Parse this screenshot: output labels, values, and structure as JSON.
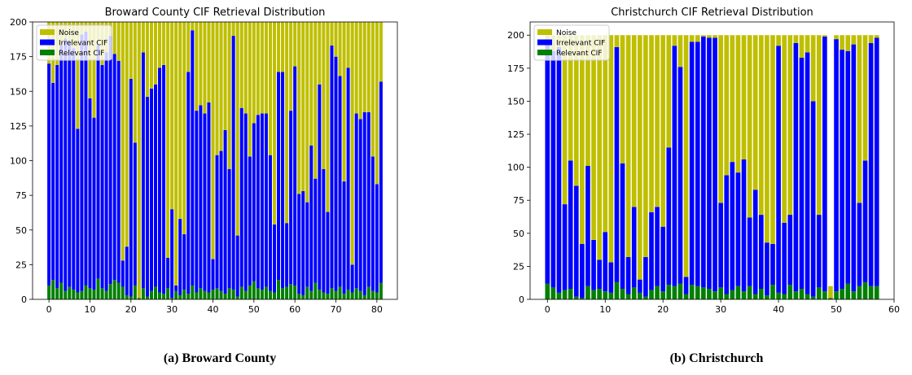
{
  "figure": {
    "captions": [
      "(a) Broward County",
      "(b) Christchurch"
    ]
  },
  "chart_data": [
    {
      "type": "bar",
      "stacked": true,
      "title": "Broward County CIF Retrieval Distribution",
      "xlabel": "",
      "ylabel": "",
      "xlim": [
        -4,
        85
      ],
      "ylim": [
        0,
        200
      ],
      "xticks": [
        0,
        10,
        20,
        30,
        40,
        50,
        60,
        70,
        80
      ],
      "yticks": [
        0,
        25,
        50,
        75,
        100,
        125,
        150,
        175,
        200
      ],
      "legend": {
        "position": "top-left",
        "entries": [
          "Noise",
          "Irrelevant CIF",
          "Relevant CIF"
        ]
      },
      "colors": {
        "Noise": "#bfbf00",
        "Irrelevant CIF": "#0000ff",
        "Relevant CIF": "#008000"
      },
      "x": [
        0,
        1,
        2,
        3,
        4,
        5,
        6,
        7,
        8,
        9,
        10,
        11,
        12,
        13,
        14,
        15,
        16,
        17,
        18,
        19,
        20,
        21,
        22,
        23,
        24,
        25,
        26,
        27,
        28,
        29,
        30,
        31,
        32,
        33,
        34,
        35,
        36,
        37,
        38,
        39,
        40,
        41,
        42,
        43,
        44,
        45,
        46,
        47,
        48,
        49,
        50,
        51,
        52,
        53,
        54,
        55,
        56,
        57,
        58,
        59,
        60,
        61,
        62,
        63,
        64,
        65,
        66,
        67,
        68,
        69,
        70,
        71,
        72,
        73,
        74,
        75,
        76,
        77,
        78,
        79,
        80,
        81
      ],
      "series": [
        {
          "name": "Relevant CIF",
          "values": [
            10,
            14,
            8,
            12,
            6,
            9,
            7,
            5,
            6,
            10,
            8,
            7,
            15,
            8,
            6,
            11,
            14,
            12,
            9,
            3,
            2,
            10,
            1,
            8,
            2,
            6,
            9,
            5,
            4,
            8,
            1,
            6,
            3,
            7,
            4,
            10,
            5,
            8,
            6,
            5,
            7,
            8,
            6,
            4,
            8,
            7,
            2,
            9,
            6,
            10,
            13,
            8,
            7,
            9,
            6,
            5,
            14,
            8,
            9,
            11,
            10,
            4,
            3,
            9,
            6,
            12,
            7,
            5,
            4,
            8,
            6,
            9,
            4,
            7,
            5,
            8,
            6,
            3,
            9,
            6,
            5,
            12
          ]
        },
        {
          "name": "Irrelevant CIF",
          "values": [
            160,
            142,
            161,
            171,
            182,
            177,
            174,
            118,
            185,
            183,
            137,
            124,
            168,
            161,
            172,
            179,
            163,
            160,
            19,
            35,
            157,
            103,
            0,
            170,
            144,
            146,
            146,
            162,
            165,
            22,
            64,
            4,
            55,
            40,
            160,
            184,
            131,
            132,
            128,
            137,
            22,
            96,
            101,
            118,
            86,
            183,
            44,
            129,
            128,
            93,
            114,
            125,
            127,
            125,
            98,
            49,
            150,
            156,
            46,
            125,
            158,
            72,
            75,
            61,
            105,
            75,
            148,
            89,
            59,
            175,
            169,
            152,
            81,
            160,
            20,
            126,
            124,
            132,
            126,
            97,
            78,
            145
          ]
        },
        {
          "name": "Noise",
          "values": [
            30,
            44,
            31,
            17,
            12,
            14,
            19,
            77,
            9,
            7,
            55,
            69,
            17,
            31,
            22,
            10,
            23,
            28,
            172,
            162,
            41,
            87,
            199,
            22,
            54,
            48,
            45,
            33,
            31,
            170,
            135,
            190,
            142,
            153,
            36,
            6,
            64,
            60,
            66,
            58,
            171,
            96,
            93,
            78,
            106,
            10,
            154,
            62,
            66,
            97,
            73,
            67,
            66,
            66,
            96,
            146,
            36,
            36,
            145,
            64,
            32,
            124,
            122,
            130,
            89,
            113,
            45,
            106,
            137,
            17,
            25,
            39,
            115,
            33,
            175,
            66,
            70,
            65,
            65,
            97,
            117,
            43
          ]
        }
      ]
    },
    {
      "type": "bar",
      "stacked": true,
      "title": "Christchurch CIF Retrieval Distribution",
      "xlabel": "",
      "ylabel": "",
      "xlim": [
        -3,
        60
      ],
      "ylim": [
        0,
        210
      ],
      "xticks": [
        0,
        10,
        20,
        30,
        40,
        50,
        60
      ],
      "yticks": [
        0,
        25,
        50,
        75,
        100,
        125,
        150,
        175,
        200
      ],
      "legend": {
        "position": "top-left",
        "entries": [
          "Noise",
          "Irrelevant CIF",
          "Relevant CIF"
        ]
      },
      "colors": {
        "Noise": "#bfbf00",
        "Irrelevant CIF": "#0000ff",
        "Relevant CIF": "#008000"
      },
      "x": [
        0,
        1,
        2,
        3,
        4,
        5,
        6,
        7,
        8,
        9,
        10,
        11,
        12,
        13,
        14,
        15,
        16,
        17,
        18,
        19,
        20,
        21,
        22,
        23,
        24,
        25,
        26,
        27,
        28,
        29,
        30,
        31,
        32,
        33,
        34,
        35,
        36,
        37,
        38,
        39,
        40,
        41,
        42,
        43,
        44,
        45,
        46,
        47,
        48,
        49,
        50,
        51,
        52,
        53,
        54,
        55,
        56,
        57
      ],
      "series": [
        {
          "name": "Relevant CIF",
          "values": [
            12,
            9,
            5,
            7,
            8,
            2,
            1,
            10,
            7,
            8,
            6,
            5,
            13,
            8,
            4,
            9,
            5,
            2,
            7,
            10,
            6,
            11,
            10,
            12,
            4,
            11,
            10,
            9,
            8,
            6,
            9,
            4,
            7,
            10,
            6,
            10,
            4,
            8,
            3,
            11,
            5,
            4,
            11,
            6,
            8,
            4,
            2,
            9,
            6,
            1,
            6,
            8,
            12,
            6,
            10,
            13,
            10,
            10
          ]
        },
        {
          "name": "Irrelevant CIF",
          "values": [
            183,
            179,
            186,
            65,
            97,
            84,
            41,
            91,
            38,
            22,
            45,
            23,
            178,
            95,
            28,
            61,
            10,
            30,
            59,
            60,
            49,
            104,
            182,
            164,
            13,
            184,
            185,
            190,
            190,
            192,
            64,
            90,
            97,
            86,
            100,
            52,
            79,
            56,
            40,
            31,
            187,
            54,
            53,
            188,
            175,
            183,
            148,
            55,
            193,
            0,
            191,
            181,
            176,
            187,
            63,
            92,
            184,
            188
          ]
        },
        {
          "name": "Noise",
          "values": [
            5,
            12,
            9,
            128,
            95,
            114,
            158,
            99,
            155,
            170,
            149,
            172,
            9,
            97,
            168,
            130,
            185,
            168,
            134,
            130,
            145,
            85,
            8,
            24,
            183,
            5,
            5,
            1,
            2,
            2,
            127,
            106,
            96,
            104,
            94,
            138,
            117,
            136,
            157,
            158,
            8,
            142,
            136,
            6,
            17,
            13,
            50,
            136,
            1,
            9,
            3,
            11,
            12,
            7,
            127,
            95,
            6,
            2
          ]
        }
      ]
    }
  ]
}
